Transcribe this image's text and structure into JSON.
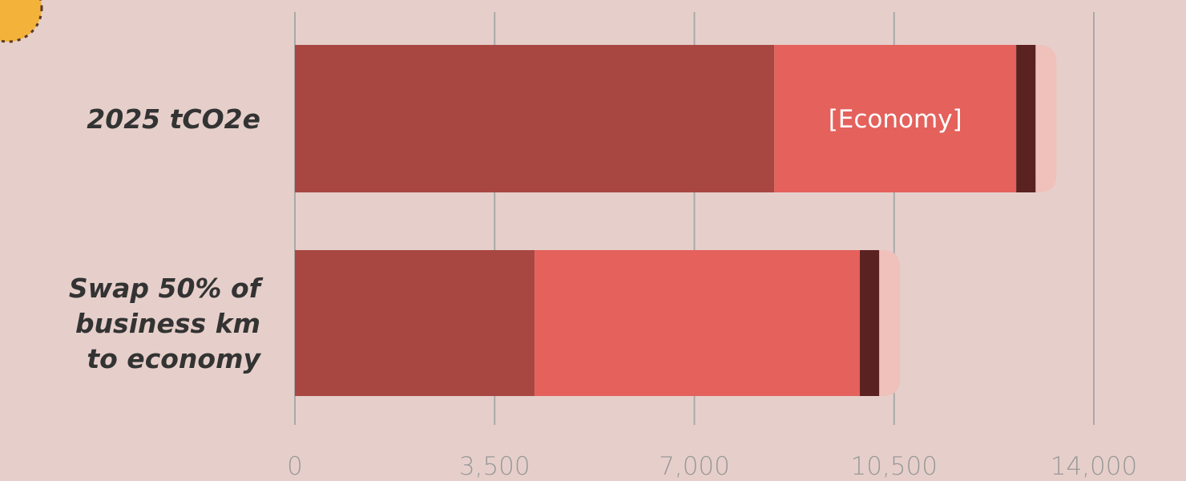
{
  "chart_data": {
    "type": "stacked-bar-horizontal",
    "categories": [
      [
        "2025 tCO2e"
      ],
      [
        "Swap 50% of",
        "business km",
        "to economy"
      ]
    ],
    "series": [
      {
        "color": "#a84742",
        "values": [
          8400,
          4200
        ]
      },
      {
        "color": "#e4615c",
        "values": [
          4240,
          5700
        ]
      },
      {
        "color": "#5a2220",
        "values": [
          340,
          340
        ]
      },
      {
        "color": "#f0c0bb",
        "values": [
          365,
          365
        ]
      }
    ],
    "annotations": [
      {
        "text": "[Economy]",
        "series": 1,
        "category": 0
      }
    ],
    "xlim": [
      0,
      14000
    ],
    "xticks": [
      0,
      {
        "value": 3500,
        "label": "3,500"
      },
      {
        "value": 7000,
        "label": "7,000"
      },
      {
        "value": 10500,
        "label": "10,500"
      },
      {
        "value": 14000,
        "label": "14,000"
      }
    ],
    "grid": true
  }
}
